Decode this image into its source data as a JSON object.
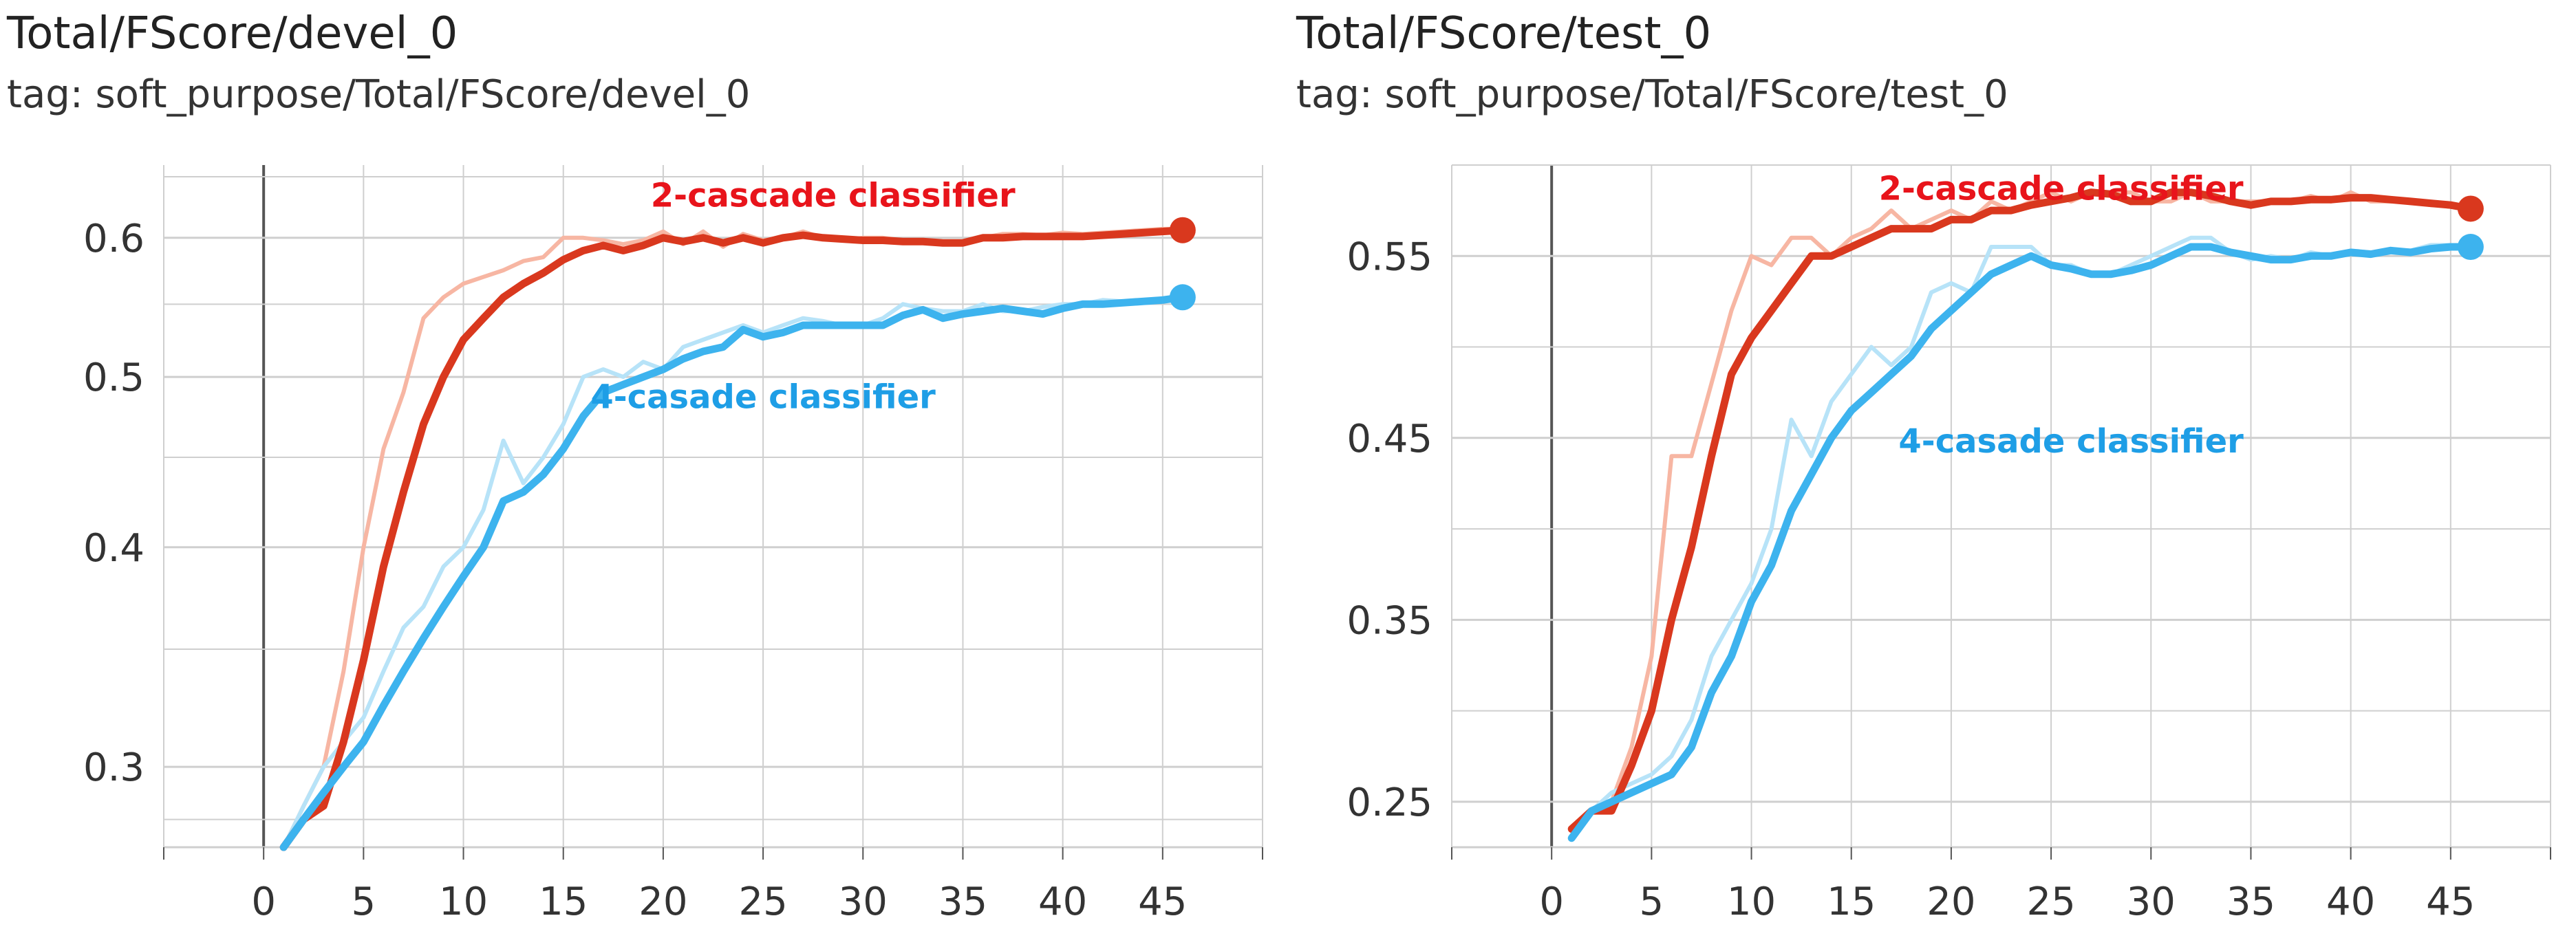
{
  "colors": {
    "red": "#d9381e",
    "red_light": "#f7b6a3",
    "blue": "#3db3ee",
    "blue_light": "#b7e3f8",
    "grid": "#cfcfcf",
    "axis": "#555555",
    "red_text": "#e8141b",
    "blue_text": "#1e9ee6"
  },
  "panels": [
    {
      "title": "Total/FScore/devel_0",
      "tag": "tag: soft_purpose/Total/FScore/devel_0"
    },
    {
      "title": "Total/FScore/test_0",
      "tag": "tag: soft_purpose/Total/FScore/test_0"
    }
  ],
  "chart_data": [
    {
      "type": "line",
      "title": "Total/FScore/devel_0",
      "subtitle": "tag: soft_purpose/Total/FScore/devel_0",
      "xlabel": "",
      "ylabel": "",
      "xlim": [
        -5,
        50
      ],
      "ylim": [
        0.27,
        0.66
      ],
      "y_scale": "log",
      "grid": true,
      "xticks": [
        0,
        5,
        10,
        15,
        20,
        25,
        30,
        35,
        40,
        45
      ],
      "yticks": [
        0.3,
        0.4,
        0.5,
        0.6
      ],
      "ytick_labels": [
        "0.3",
        "0.4",
        "0.5",
        "0.6"
      ],
      "annotations": [
        {
          "text": "2-cascade classifier",
          "x": 28.5,
          "y": 0.625,
          "color": "red"
        },
        {
          "text": "4-casade classifier",
          "x": 25.0,
          "y": 0.48,
          "color": "blue"
        }
      ],
      "series": [
        {
          "name": "2-cascade classifier",
          "color": "red",
          "x": [
            1,
            2,
            3,
            4,
            5,
            6,
            7,
            8,
            9,
            10,
            11,
            12,
            13,
            14,
            15,
            16,
            17,
            18,
            19,
            20,
            21,
            22,
            23,
            24,
            25,
            26,
            27,
            28,
            29,
            30,
            31,
            32,
            33,
            34,
            35,
            36,
            37,
            38,
            39,
            40,
            41,
            42,
            43,
            44,
            45,
            46
          ],
          "values": [
            0.27,
            0.28,
            0.285,
            0.31,
            0.345,
            0.39,
            0.43,
            0.47,
            0.5,
            0.525,
            0.54,
            0.555,
            0.565,
            0.573,
            0.583,
            0.59,
            0.594,
            0.59,
            0.594,
            0.6,
            0.597,
            0.6,
            0.596,
            0.6,
            0.596,
            0.6,
            0.602,
            0.6,
            0.599,
            0.598,
            0.598,
            0.597,
            0.597,
            0.596,
            0.596,
            0.6,
            0.6,
            0.601,
            0.601,
            0.601,
            0.601,
            0.602,
            0.603,
            0.604,
            0.605,
            0.606
          ],
          "smoothed_raw": [
            0.27,
            0.285,
            0.3,
            0.34,
            0.4,
            0.455,
            0.49,
            0.54,
            0.555,
            0.565,
            0.57,
            0.575,
            0.582,
            0.585,
            0.6,
            0.6,
            0.598,
            0.595,
            0.598,
            0.605,
            0.595,
            0.605,
            0.593,
            0.603,
            0.598,
            0.6,
            0.605,
            0.6,
            0.598,
            0.6,
            0.6,
            0.598,
            0.597,
            0.597,
            0.596,
            0.6,
            0.603,
            0.603,
            0.602,
            0.604,
            0.603,
            0.604,
            0.605,
            0.606,
            0.607,
            0.607
          ]
        },
        {
          "name": "4-casade classifier",
          "color": "blue",
          "x": [
            1,
            2,
            3,
            4,
            5,
            6,
            7,
            8,
            9,
            10,
            11,
            12,
            13,
            14,
            15,
            16,
            17,
            18,
            19,
            20,
            21,
            22,
            23,
            24,
            25,
            26,
            27,
            28,
            29,
            30,
            31,
            32,
            33,
            34,
            35,
            36,
            37,
            38,
            39,
            40,
            41,
            42,
            43,
            44,
            45,
            46
          ],
          "values": [
            0.27,
            0.28,
            0.29,
            0.3,
            0.31,
            0.325,
            0.34,
            0.355,
            0.37,
            0.385,
            0.4,
            0.425,
            0.43,
            0.44,
            0.455,
            0.475,
            0.49,
            0.495,
            0.5,
            0.505,
            0.512,
            0.517,
            0.52,
            0.532,
            0.527,
            0.53,
            0.535,
            0.535,
            0.535,
            0.535,
            0.535,
            0.542,
            0.546,
            0.54,
            0.543,
            0.545,
            0.547,
            0.545,
            0.543,
            0.547,
            0.55,
            0.55,
            0.551,
            0.552,
            0.553,
            0.555
          ],
          "smoothed_raw": [
            0.27,
            0.285,
            0.3,
            0.31,
            0.32,
            0.34,
            0.36,
            0.37,
            0.39,
            0.4,
            0.42,
            0.46,
            0.435,
            0.45,
            0.47,
            0.5,
            0.505,
            0.5,
            0.51,
            0.505,
            0.52,
            0.525,
            0.53,
            0.535,
            0.53,
            0.535,
            0.54,
            0.538,
            0.535,
            0.535,
            0.54,
            0.55,
            0.547,
            0.545,
            0.545,
            0.55,
            0.545,
            0.545,
            0.548,
            0.55,
            0.55,
            0.553,
            0.552,
            0.553,
            0.554,
            0.555
          ]
        }
      ]
    },
    {
      "type": "line",
      "title": "Total/FScore/test_0",
      "subtitle": "tag: soft_purpose/Total/FScore/test_0",
      "xlabel": "",
      "ylabel": "",
      "xlim": [
        -5,
        50
      ],
      "ylim": [
        0.225,
        0.6
      ],
      "grid": true,
      "xticks": [
        0,
        5,
        10,
        15,
        20,
        25,
        30,
        35,
        40,
        45
      ],
      "yticks": [
        0.25,
        0.35,
        0.45,
        0.55
      ],
      "ytick_labels": [
        "0.25",
        "0.35",
        "0.45",
        "0.55"
      ],
      "annotations": [
        {
          "text": "2-cascade classifier",
          "x": 25.5,
          "y": 0.581,
          "color": "red"
        },
        {
          "text": "4-casade classifier",
          "x": 26.0,
          "y": 0.442,
          "color": "blue"
        }
      ],
      "series": [
        {
          "name": "2-cascade classifier",
          "color": "red",
          "x": [
            1,
            2,
            3,
            4,
            5,
            6,
            7,
            8,
            9,
            10,
            11,
            12,
            13,
            14,
            15,
            16,
            17,
            18,
            19,
            20,
            21,
            22,
            23,
            24,
            25,
            26,
            27,
            28,
            29,
            30,
            31,
            32,
            33,
            34,
            35,
            36,
            37,
            38,
            39,
            40,
            41,
            42,
            43,
            44,
            45,
            46
          ],
          "values": [
            0.235,
            0.245,
            0.245,
            0.27,
            0.3,
            0.35,
            0.39,
            0.44,
            0.485,
            0.505,
            0.52,
            0.535,
            0.55,
            0.55,
            0.555,
            0.56,
            0.565,
            0.565,
            0.565,
            0.57,
            0.57,
            0.575,
            0.575,
            0.578,
            0.58,
            0.582,
            0.585,
            0.584,
            0.58,
            0.58,
            0.585,
            0.585,
            0.583,
            0.58,
            0.578,
            0.58,
            0.58,
            0.581,
            0.581,
            0.582,
            0.582,
            0.581,
            0.58,
            0.579,
            0.578,
            0.576
          ],
          "smoothed_raw": [
            0.235,
            0.245,
            0.25,
            0.28,
            0.33,
            0.44,
            0.44,
            0.48,
            0.52,
            0.55,
            0.545,
            0.56,
            0.56,
            0.55,
            0.56,
            0.565,
            0.575,
            0.565,
            0.57,
            0.575,
            0.57,
            0.58,
            0.575,
            0.58,
            0.585,
            0.58,
            0.585,
            0.585,
            0.585,
            0.58,
            0.58,
            0.585,
            0.58,
            0.58,
            0.58,
            0.58,
            0.58,
            0.583,
            0.58,
            0.585,
            0.58,
            0.58,
            0.58,
            0.578,
            0.578,
            0.576
          ]
        },
        {
          "name": "4-casade classifier",
          "color": "blue",
          "x": [
            1,
            2,
            3,
            4,
            5,
            6,
            7,
            8,
            9,
            10,
            11,
            12,
            13,
            14,
            15,
            16,
            17,
            18,
            19,
            20,
            21,
            22,
            23,
            24,
            25,
            26,
            27,
            28,
            29,
            30,
            31,
            32,
            33,
            34,
            35,
            36,
            37,
            38,
            39,
            40,
            41,
            42,
            43,
            44,
            45,
            46
          ],
          "values": [
            0.23,
            0.245,
            0.25,
            0.255,
            0.26,
            0.265,
            0.28,
            0.31,
            0.33,
            0.36,
            0.38,
            0.41,
            0.43,
            0.45,
            0.465,
            0.475,
            0.485,
            0.495,
            0.51,
            0.52,
            0.53,
            0.54,
            0.545,
            0.55,
            0.545,
            0.543,
            0.54,
            0.54,
            0.542,
            0.545,
            0.55,
            0.555,
            0.555,
            0.552,
            0.55,
            0.548,
            0.548,
            0.55,
            0.55,
            0.552,
            0.551,
            0.553,
            0.552,
            0.554,
            0.555,
            0.555
          ],
          "smoothed_raw": [
            0.23,
            0.245,
            0.255,
            0.26,
            0.265,
            0.275,
            0.295,
            0.33,
            0.35,
            0.37,
            0.4,
            0.46,
            0.44,
            0.47,
            0.485,
            0.5,
            0.49,
            0.5,
            0.53,
            0.535,
            0.53,
            0.555,
            0.555,
            0.555,
            0.545,
            0.545,
            0.54,
            0.54,
            0.545,
            0.55,
            0.555,
            0.56,
            0.56,
            0.552,
            0.548,
            0.55,
            0.548,
            0.552,
            0.55,
            0.553,
            0.552,
            0.553,
            0.553,
            0.556,
            0.556,
            0.555
          ]
        }
      ]
    }
  ]
}
